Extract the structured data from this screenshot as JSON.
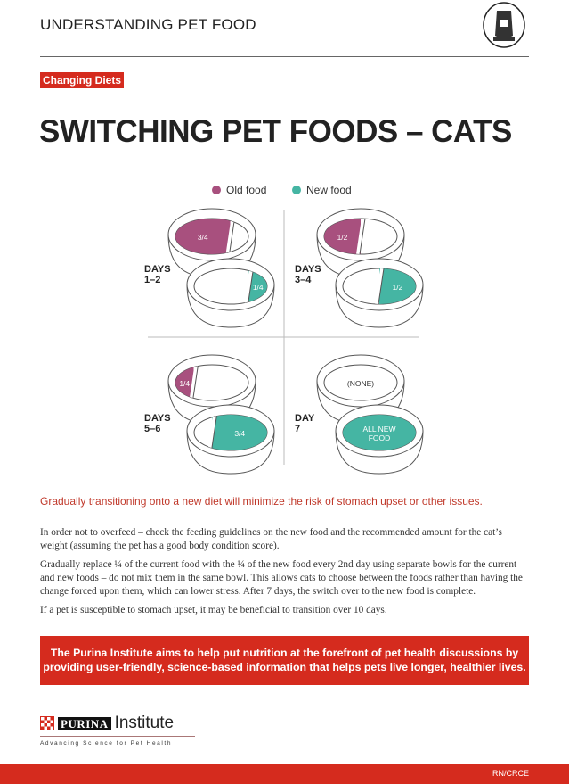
{
  "header": {
    "title": "UNDERSTANDING PET FOOD",
    "icon": "pet-food-bag-icon"
  },
  "badge": "Changing Diets",
  "title": "SWITCHING PET FOODS – CATS",
  "legend": {
    "old": {
      "label": "Old food",
      "color": "#a8507e"
    },
    "new": {
      "label": "New food",
      "color": "#45b5a3"
    }
  },
  "panels": [
    {
      "label": "DAYS\n1–2",
      "old_fraction": 0.75,
      "old_label": "3/4",
      "new_fraction": 0.25,
      "new_label": "1/4"
    },
    {
      "label": "DAYS\n3–4",
      "old_fraction": 0.5,
      "old_label": "1/2",
      "new_fraction": 0.5,
      "new_label": "1/2"
    },
    {
      "label": "DAYS\n5–6",
      "old_fraction": 0.25,
      "old_label": "1/4",
      "new_fraction": 0.75,
      "new_label": "3/4"
    },
    {
      "label": "DAY\n7",
      "old_fraction": 0,
      "old_label": "(NONE)",
      "new_fraction": 1,
      "new_label": "ALL NEW\nFOOD"
    }
  ],
  "lead": "Gradually transitioning onto a new diet will minimize the risk of stomach upset or other issues.",
  "paragraphs": [
    "In order not to overfeed – check the feeding guidelines on the new food and the recommended amount for the cat’s weight (assuming the pet has a good body condition score).",
    "Gradually replace ¼ of the current food with the ¼ of the new food every 2nd day using separate bowls for the current and new foods – do not mix them in the same bowl. This allows cats to choose between the foods rather than having the change forced upon them, which can lower stress. After 7 days, the switch over to the new food is complete.",
    "If a pet is susceptible to stomach upset, it may be beneficial to transition over 10 days."
  ],
  "callout": "The Purina Institute aims to help put nutrition at the forefront of pet health discussions by providing user-friendly, science-based information that helps pets live longer, healthier lives.",
  "logo": {
    "brand": "PURINA",
    "name": "Institute",
    "tagline": "Advancing Science for Pet Health"
  },
  "footer": {
    "code": "RN/CRCE"
  },
  "colors": {
    "accent": "#d52b1e"
  }
}
